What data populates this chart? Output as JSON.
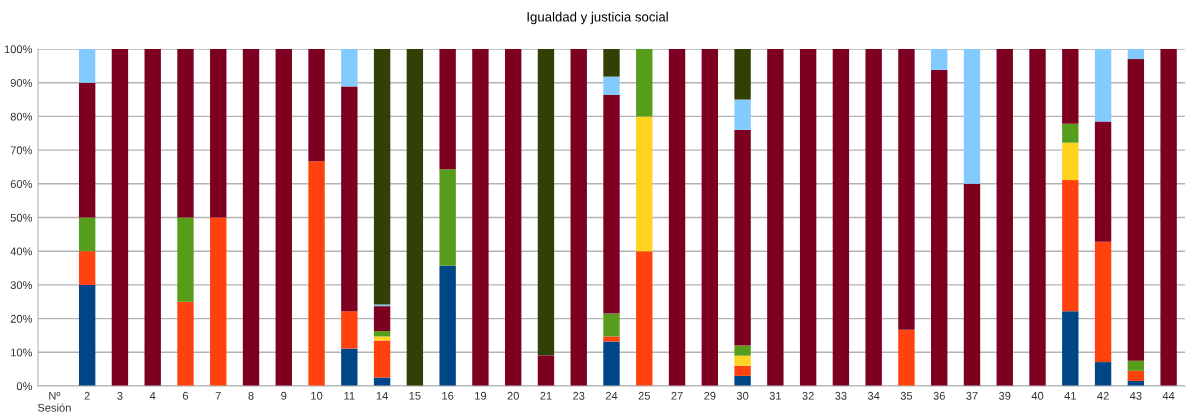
{
  "chart_data": {
    "type": "bar",
    "stacked": true,
    "title": "Igualdad y justicia social",
    "categories": [
      "Nº\nSesión",
      "2",
      "3",
      "4",
      "6",
      "7",
      "8",
      "9",
      "10",
      "11",
      "14",
      "15",
      "16",
      "19",
      "20",
      "21",
      "23",
      "24",
      "25",
      "27",
      "29",
      "30",
      "31",
      "32",
      "33",
      "34",
      "35",
      "36",
      "37",
      "39",
      "40",
      "41",
      "42",
      "43",
      "44"
    ],
    "series": [
      {
        "color": "#004586",
        "values": [
          null,
          30,
          null,
          null,
          null,
          null,
          null,
          null,
          null,
          11.1,
          2.5,
          null,
          35.7,
          null,
          null,
          null,
          null,
          13.2,
          null,
          null,
          null,
          3,
          null,
          null,
          null,
          null,
          null,
          null,
          null,
          null,
          null,
          22.2,
          7.1,
          1.5,
          null
        ]
      },
      {
        "color": "#ff420e",
        "values": [
          null,
          10,
          null,
          null,
          25,
          50,
          null,
          null,
          66.7,
          11.1,
          11,
          null,
          null,
          null,
          null,
          null,
          null,
          1.5,
          40,
          null,
          null,
          3,
          null,
          null,
          null,
          null,
          16.7,
          null,
          null,
          null,
          null,
          38.9,
          35.7,
          3,
          null
        ]
      },
      {
        "color": "#ffd320",
        "values": [
          null,
          null,
          null,
          null,
          null,
          null,
          null,
          null,
          null,
          null,
          1.2,
          null,
          null,
          null,
          null,
          null,
          null,
          null,
          40,
          null,
          null,
          3,
          null,
          null,
          null,
          null,
          null,
          null,
          null,
          null,
          null,
          11.1,
          null,
          null,
          null
        ]
      },
      {
        "color": "#579d1c",
        "values": [
          null,
          10,
          null,
          null,
          25,
          null,
          null,
          null,
          null,
          null,
          1.6,
          null,
          28.6,
          null,
          null,
          null,
          null,
          6.8,
          20,
          null,
          null,
          3,
          null,
          null,
          null,
          null,
          null,
          null,
          null,
          null,
          null,
          5.6,
          null,
          3,
          null
        ]
      },
      {
        "color": "#7e0021",
        "values": [
          null,
          40,
          100,
          100,
          50,
          50,
          100,
          100,
          33.3,
          66.7,
          7.4,
          null,
          35.7,
          100,
          100,
          9.1,
          100,
          64.9,
          null,
          100,
          100,
          64,
          100,
          100,
          100,
          100,
          83.3,
          93.8,
          60,
          100,
          100,
          22.2,
          35.7,
          89.5,
          100
        ]
      },
      {
        "color": "#83caff",
        "values": [
          null,
          10,
          null,
          null,
          null,
          null,
          null,
          null,
          null,
          11.1,
          0.5,
          null,
          null,
          null,
          null,
          null,
          null,
          5.4,
          null,
          null,
          null,
          9,
          null,
          null,
          null,
          null,
          null,
          6.2,
          40,
          null,
          null,
          null,
          21.4,
          3,
          null
        ]
      },
      {
        "color": "#314004",
        "values": [
          null,
          null,
          null,
          null,
          null,
          null,
          null,
          null,
          null,
          null,
          75.8,
          100,
          null,
          null,
          null,
          90.9,
          null,
          8.2,
          null,
          null,
          null,
          15,
          null,
          null,
          null,
          null,
          null,
          null,
          null,
          null,
          null,
          null,
          null,
          null,
          null
        ]
      }
    ],
    "ylim": [
      0,
      100
    ],
    "yticks": [
      {
        "value": 0,
        "label": "0%"
      },
      {
        "value": 10,
        "label": "10%"
      },
      {
        "value": 20,
        "label": "20%"
      },
      {
        "value": 30,
        "label": "30%"
      },
      {
        "value": 40,
        "label": "40%"
      },
      {
        "value": 50,
        "label": "50%"
      },
      {
        "value": 60,
        "label": "60%"
      },
      {
        "value": 70,
        "label": "70%"
      },
      {
        "value": 80,
        "label": "80%"
      },
      {
        "value": 90,
        "label": "90%"
      },
      {
        "value": 100,
        "label": "100%"
      }
    ],
    "grid": "y"
  }
}
